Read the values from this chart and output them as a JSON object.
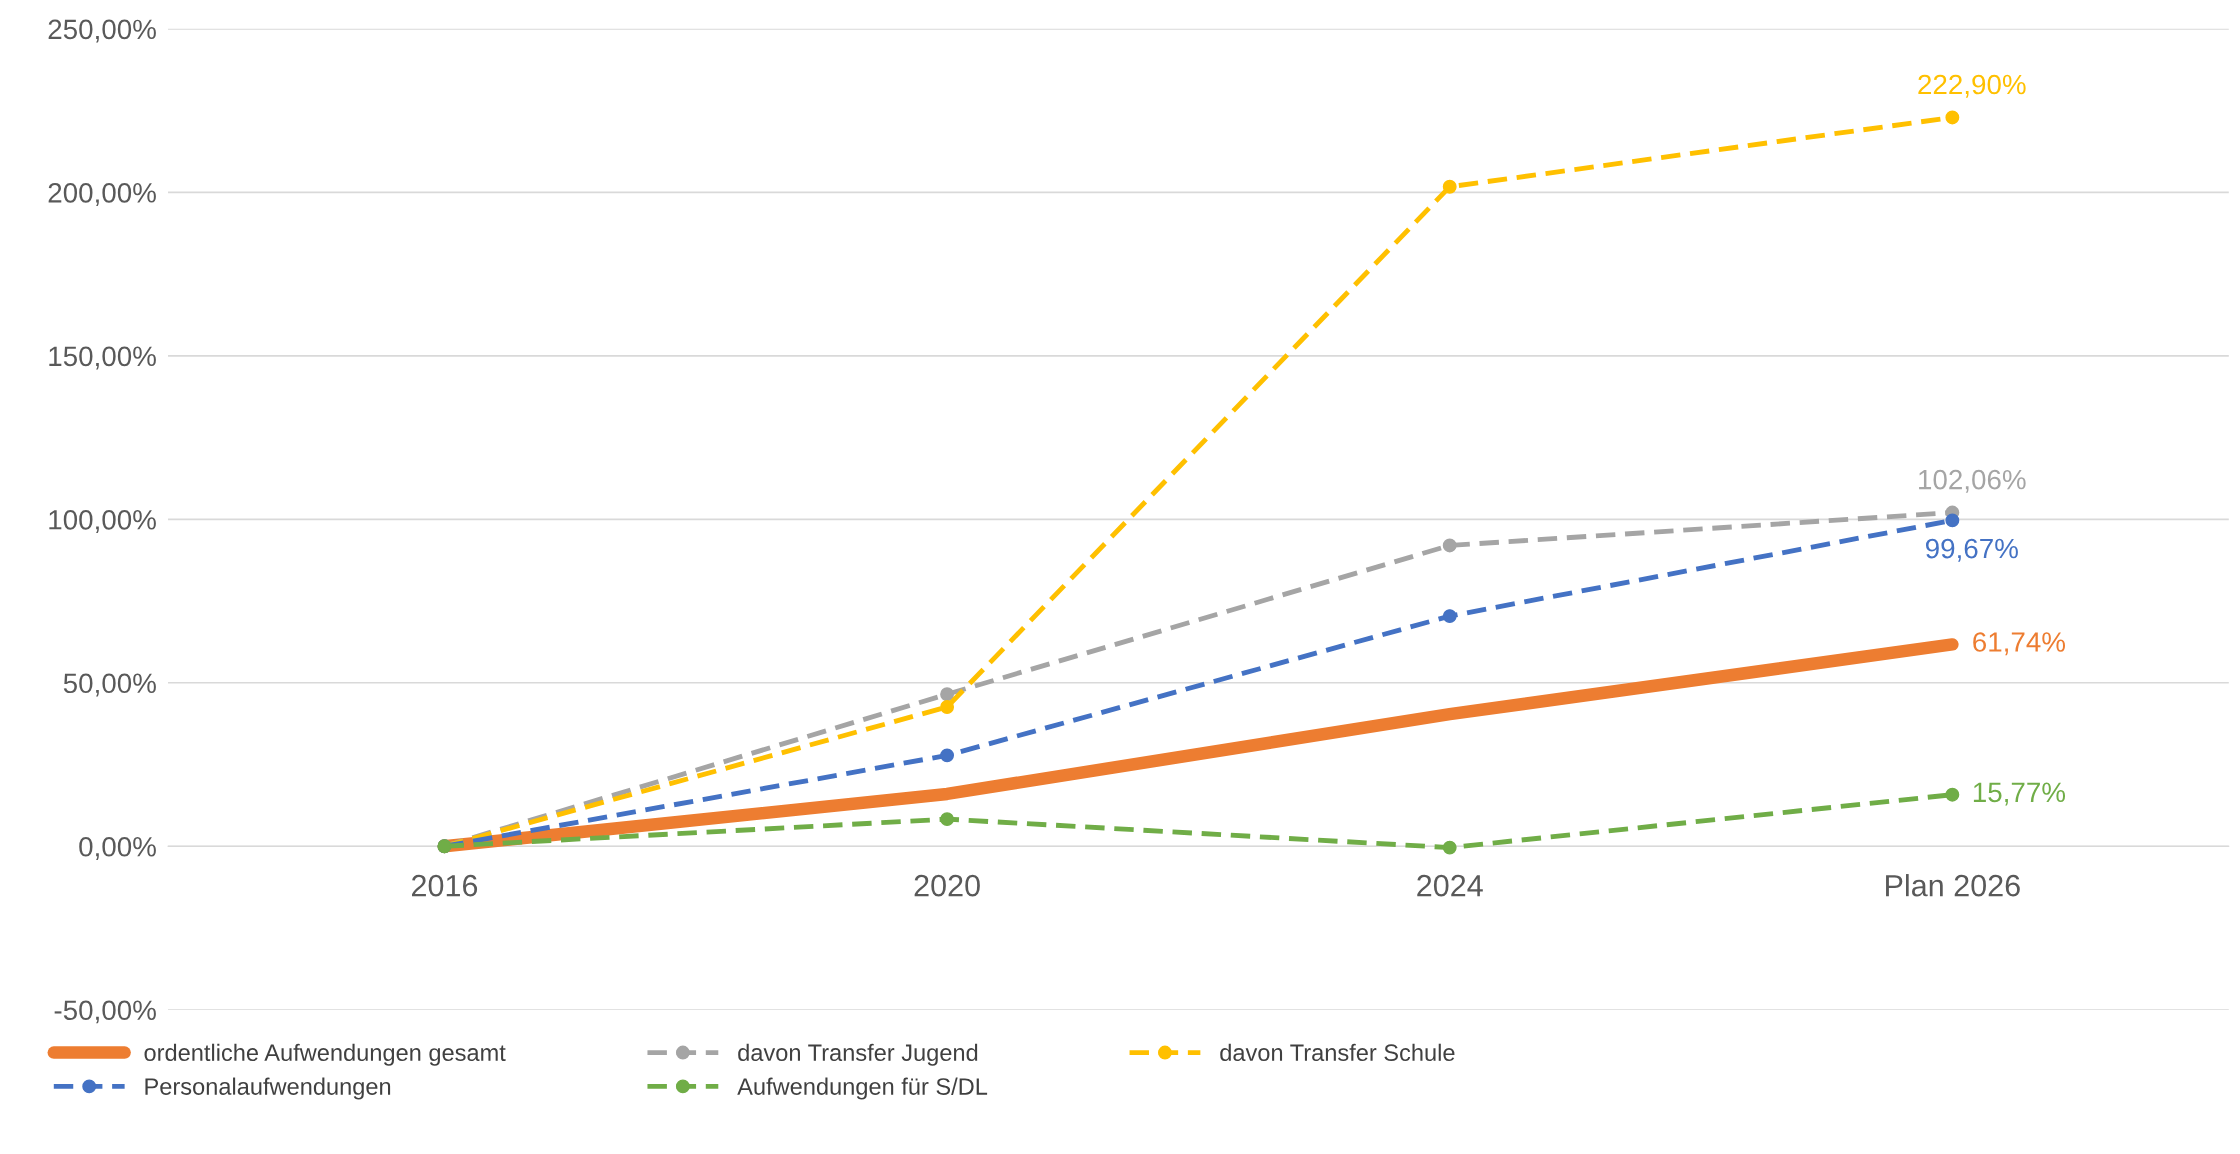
{
  "chart_data": {
    "type": "line",
    "categories": [
      "2016",
      "2020",
      "2024",
      "Plan 2026"
    ],
    "series": [
      {
        "name": "ordentliche Aufwendungen gesamt",
        "color": "#ed7d31",
        "values": [
          0,
          16,
          40.4,
          61.74
        ],
        "line_style": "solid",
        "marker": "none",
        "value_labels": [
          null,
          null,
          null,
          "61,74%"
        ]
      },
      {
        "name": "davon Transfer Jugend",
        "color": "#a5a5a5",
        "values": [
          0,
          46.5,
          92,
          102.06
        ],
        "line_style": "dashed",
        "marker": "circle",
        "value_labels": [
          null,
          null,
          null,
          "102,06%"
        ]
      },
      {
        "name": "davon Transfer Schule",
        "color": "#ffc000",
        "values": [
          0,
          42.6,
          201.7,
          222.9
        ],
        "line_style": "dashed",
        "marker": "circle",
        "value_labels": [
          null,
          null,
          null,
          "222,90%"
        ]
      },
      {
        "name": "Personalaufwendungen",
        "color": "#4472c4",
        "values": [
          0,
          27.8,
          70.4,
          99.67
        ],
        "line_style": "dashed",
        "marker": "circle",
        "value_labels": [
          null,
          null,
          null,
          "99,67%"
        ]
      },
      {
        "name": "Aufwendungen für S/DL",
        "color": "#70ad47",
        "values": [
          0,
          8.3,
          -0.4,
          15.77
        ],
        "line_style": "dashed",
        "marker": "circle",
        "value_labels": [
          null,
          null,
          null,
          "15,77%"
        ]
      }
    ],
    "ylim": [
      -50,
      250
    ],
    "yticks": [
      {
        "value": -50,
        "label": "-50,00%"
      },
      {
        "value": 0,
        "label": "0,00%"
      },
      {
        "value": 50,
        "label": "50,00%"
      },
      {
        "value": 100,
        "label": "100,00%"
      },
      {
        "value": 150,
        "label": "150,00%"
      },
      {
        "value": 200,
        "label": "200,00%"
      },
      {
        "value": 250,
        "label": "250,00%"
      }
    ],
    "grid": "y",
    "legend": "bottom"
  }
}
